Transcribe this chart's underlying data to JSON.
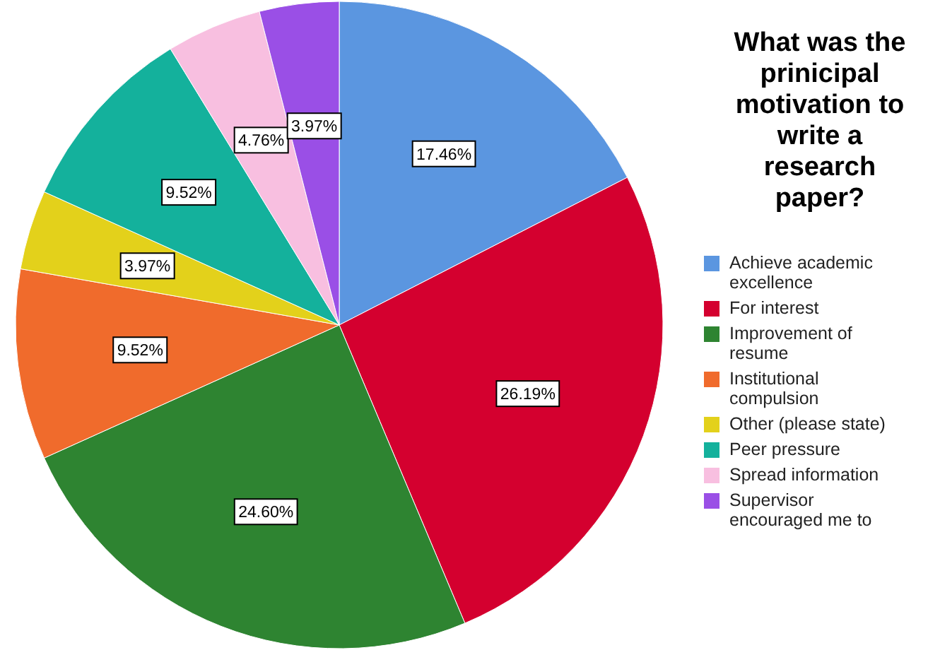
{
  "chart_data": {
    "type": "pie",
    "legend_title": "What was the prinicipal motivation to write a research paper?",
    "categories": [
      "Achieve academic excellence",
      "For interest",
      "Improvement of resume",
      "Institutional compulsion",
      "Other (please state)",
      "Peer pressure",
      "Spread information",
      "Supervisor encouraged me to"
    ],
    "values": [
      17.46,
      26.19,
      24.6,
      9.52,
      3.97,
      9.52,
      4.76,
      3.97
    ],
    "colors": [
      "#5b96e0",
      "#d4002f",
      "#2e8431",
      "#f06b2c",
      "#e3d11b",
      "#14b19c",
      "#f8bfe0",
      "#9a4fe6"
    ],
    "value_labels": [
      "17.46%",
      "26.19%",
      "24.60%",
      "9.52%",
      "3.97%",
      "9.52%",
      "4.76%",
      "3.97%"
    ],
    "legend": "right"
  }
}
